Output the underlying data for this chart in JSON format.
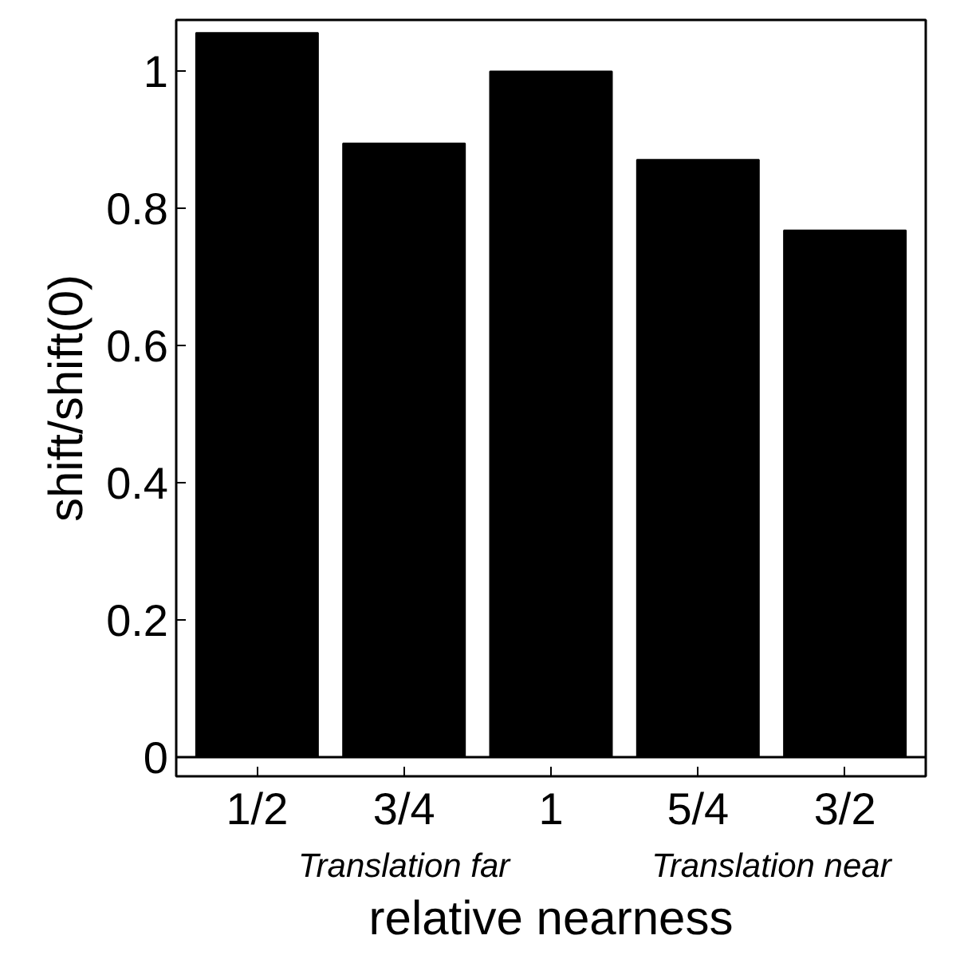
{
  "chart_data": {
    "type": "bar",
    "xlabel": "relative nearness",
    "ylabel": "shift/shift(0)",
    "categories": [
      "1/2",
      "3/4",
      "1",
      "5/4",
      "3/2"
    ],
    "values": [
      1.056,
      0.895,
      1.0,
      0.871,
      0.768
    ],
    "color": "#000000",
    "ylim": [
      -0.028,
      1.075
    ],
    "yticks": [
      0,
      0.2,
      0.4,
      0.6,
      0.8,
      1
    ],
    "annotations": [
      "Translation far",
      "Translation near"
    ],
    "grid": false
  }
}
